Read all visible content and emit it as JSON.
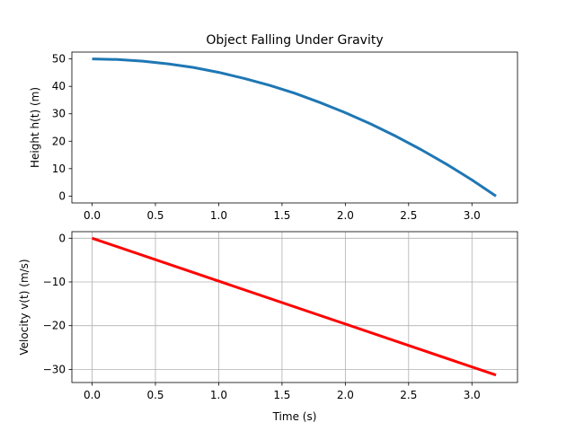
{
  "chart_data": [
    {
      "type": "line",
      "title": "Object Falling Under Gravity",
      "xlabel": "",
      "ylabel": "Height h(t) (m)",
      "xlim": [
        -0.16,
        3.36
      ],
      "ylim": [
        -2.5,
        52.5
      ],
      "xticks": [
        0.0,
        0.5,
        1.0,
        1.5,
        2.0,
        2.5,
        3.0
      ],
      "xtick_labels": [
        "0.0",
        "0.5",
        "1.0",
        "1.5",
        "2.0",
        "2.5",
        "3.0"
      ],
      "yticks": [
        0,
        10,
        20,
        30,
        40,
        50
      ],
      "ytick_labels": [
        "0",
        "10",
        "20",
        "30",
        "40",
        "50"
      ],
      "grid": false,
      "series": [
        {
          "color": "#1f77b4",
          "x": [
            0.0,
            0.2,
            0.4,
            0.6,
            0.8,
            1.0,
            1.2,
            1.4,
            1.6,
            1.8,
            2.0,
            2.2,
            2.4,
            2.6,
            2.8,
            3.0,
            3.19
          ],
          "y": [
            50.0,
            49.8,
            49.2,
            48.2,
            46.9,
            45.1,
            42.9,
            40.4,
            37.5,
            34.1,
            30.4,
            26.3,
            21.8,
            16.9,
            11.6,
            5.9,
            0.0
          ]
        }
      ]
    },
    {
      "type": "line",
      "title": "",
      "xlabel": "Time (s)",
      "ylabel": "Velocity v(t) (m/s)",
      "xlim": [
        -0.16,
        3.36
      ],
      "ylim": [
        -33.0,
        1.5
      ],
      "xticks": [
        0.0,
        0.5,
        1.0,
        1.5,
        2.0,
        2.5,
        3.0
      ],
      "xtick_labels": [
        "0.0",
        "0.5",
        "1.0",
        "1.5",
        "2.0",
        "2.5",
        "3.0"
      ],
      "yticks": [
        0,
        -10,
        -20,
        -30
      ],
      "ytick_labels": [
        "0",
        "−10",
        "−20",
        "−30"
      ],
      "grid": true,
      "series": [
        {
          "color": "#ff0000",
          "x": [
            0.0,
            3.19
          ],
          "y": [
            0.0,
            -31.3
          ]
        }
      ]
    }
  ]
}
